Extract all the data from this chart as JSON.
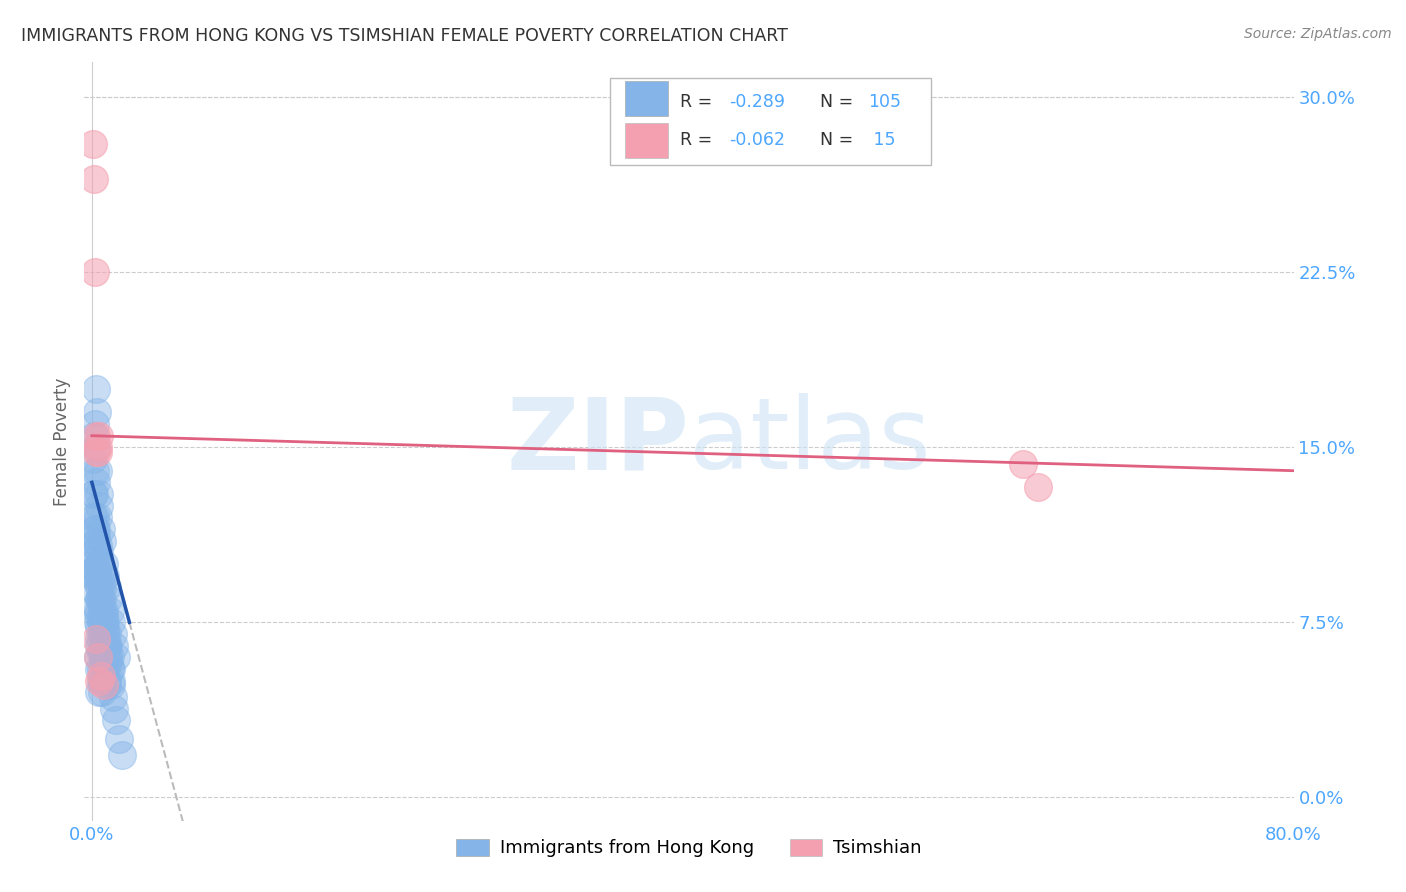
{
  "title": "IMMIGRANTS FROM HONG KONG VS TSIMSHIAN FEMALE POVERTY CORRELATION CHART",
  "source": "Source: ZipAtlas.com",
  "ylabel": "Female Poverty",
  "ytick_labels": [
    "0.0%",
    "7.5%",
    "15.0%",
    "22.5%",
    "30.0%"
  ],
  "ytick_values": [
    0.0,
    0.075,
    0.15,
    0.225,
    0.3
  ],
  "xlim": [
    -0.005,
    0.8
  ],
  "ylim": [
    -0.01,
    0.315
  ],
  "blue_R": -0.289,
  "blue_N": 105,
  "pink_R": -0.062,
  "pink_N": 15,
  "legend_label_blue": "Immigrants from Hong Kong",
  "legend_label_pink": "Tsimshian",
  "blue_color": "#85b5e8",
  "pink_color": "#f4a0b0",
  "trendline_blue_color": "#2255aa",
  "trendline_pink_color": "#e06080",
  "trendline_dashed_color": "#bbbbbb",
  "watermark": "ZIPatlas",
  "background_color": "#ffffff",
  "title_color": "#333333",
  "axis_label_color": "#4da6ff",
  "blue_scatter_x": [
    0.0008,
    0.001,
    0.0012,
    0.0015,
    0.002,
    0.002,
    0.002,
    0.0025,
    0.003,
    0.003,
    0.003,
    0.003,
    0.0035,
    0.004,
    0.004,
    0.004,
    0.004,
    0.004,
    0.0045,
    0.005,
    0.005,
    0.005,
    0.005,
    0.005,
    0.006,
    0.006,
    0.006,
    0.006,
    0.007,
    0.007,
    0.007,
    0.007,
    0.008,
    0.008,
    0.008,
    0.009,
    0.009,
    0.009,
    0.01,
    0.01,
    0.01,
    0.011,
    0.011,
    0.012,
    0.012,
    0.013,
    0.013,
    0.014,
    0.015,
    0.016,
    0.001,
    0.0015,
    0.002,
    0.0025,
    0.003,
    0.003,
    0.004,
    0.004,
    0.005,
    0.005,
    0.005,
    0.006,
    0.006,
    0.006,
    0.007,
    0.007,
    0.007,
    0.008,
    0.008,
    0.009,
    0.009,
    0.01,
    0.01,
    0.011,
    0.012,
    0.013,
    0.001,
    0.002,
    0.002,
    0.003,
    0.003,
    0.004,
    0.004,
    0.005,
    0.005,
    0.006,
    0.006,
    0.007,
    0.008,
    0.009,
    0.003,
    0.004,
    0.005,
    0.006,
    0.007,
    0.008,
    0.009,
    0.01,
    0.011,
    0.013,
    0.014,
    0.015,
    0.016,
    0.018,
    0.02
  ],
  "blue_scatter_y": [
    0.12,
    0.145,
    0.13,
    0.155,
    0.16,
    0.14,
    0.115,
    0.175,
    0.15,
    0.135,
    0.11,
    0.095,
    0.165,
    0.14,
    0.12,
    0.1,
    0.08,
    0.06,
    0.13,
    0.125,
    0.105,
    0.085,
    0.065,
    0.045,
    0.115,
    0.095,
    0.075,
    0.055,
    0.11,
    0.09,
    0.07,
    0.05,
    0.1,
    0.08,
    0.06,
    0.095,
    0.075,
    0.055,
    0.09,
    0.07,
    0.05,
    0.085,
    0.065,
    0.08,
    0.06,
    0.075,
    0.055,
    0.07,
    0.065,
    0.06,
    0.095,
    0.108,
    0.098,
    0.112,
    0.102,
    0.088,
    0.095,
    0.078,
    0.09,
    0.073,
    0.055,
    0.085,
    0.068,
    0.05,
    0.08,
    0.063,
    0.045,
    0.075,
    0.058,
    0.07,
    0.053,
    0.065,
    0.048,
    0.06,
    0.055,
    0.05,
    0.13,
    0.12,
    0.105,
    0.098,
    0.082,
    0.092,
    0.075,
    0.085,
    0.068,
    0.078,
    0.062,
    0.072,
    0.068,
    0.065,
    0.115,
    0.108,
    0.1,
    0.092,
    0.085,
    0.078,
    0.072,
    0.065,
    0.058,
    0.048,
    0.043,
    0.038,
    0.033,
    0.025,
    0.018
  ],
  "pink_scatter_x": [
    0.0008,
    0.0015,
    0.002,
    0.003,
    0.003,
    0.004,
    0.004,
    0.005,
    0.005,
    0.006,
    0.008,
    0.62,
    0.63,
    0.003,
    0.004
  ],
  "pink_scatter_y": [
    0.28,
    0.265,
    0.225,
    0.155,
    0.148,
    0.15,
    0.148,
    0.155,
    0.05,
    0.052,
    0.048,
    0.143,
    0.133,
    0.068,
    0.06
  ]
}
